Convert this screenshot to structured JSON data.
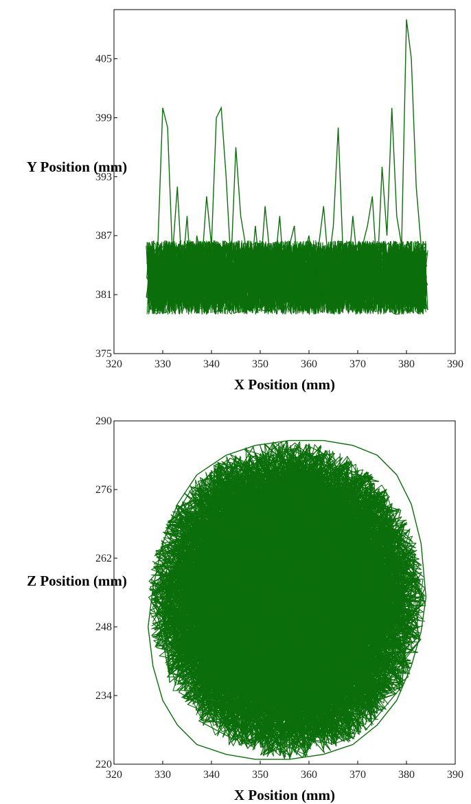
{
  "chart_data": [
    {
      "type": "line",
      "title": "",
      "xlabel": "X Position (mm)",
      "ylabel": "Y Position (mm)",
      "xlim": [
        320,
        390
      ],
      "ylim": [
        375,
        410
      ],
      "xticks": [
        320,
        330,
        340,
        350,
        360,
        370,
        380,
        390
      ],
      "yticks": [
        375,
        381,
        387,
        393,
        399,
        405
      ],
      "grid": false,
      "color": "#0b6e0b",
      "series": [
        {
          "x": [
            327,
            328,
            329,
            330,
            331,
            332,
            333,
            334,
            335,
            336,
            337,
            338,
            339,
            340,
            341,
            342,
            343,
            344,
            345,
            346,
            347,
            348,
            349,
            350,
            351,
            352,
            353,
            354,
            355,
            356,
            357,
            358,
            359,
            360,
            361,
            362,
            363,
            364,
            365,
            366,
            367,
            368,
            369,
            370,
            371,
            372,
            373,
            374,
            375,
            376,
            377,
            378,
            379,
            380,
            381,
            382,
            383,
            384
          ],
          "y": [
            384,
            382,
            386,
            400,
            398,
            385,
            392,
            383,
            389,
            381,
            387,
            384,
            391,
            386,
            399,
            400,
            393,
            384,
            396,
            389,
            386,
            382,
            388,
            383,
            390,
            385,
            384,
            389,
            382,
            386,
            388,
            381,
            385,
            387,
            383,
            386,
            390,
            384,
            388,
            398,
            385,
            383,
            389,
            384,
            386,
            388,
            391,
            383,
            394,
            387,
            400,
            389,
            386,
            409,
            405,
            392,
            386,
            383
          ]
        }
      ]
    },
    {
      "type": "line",
      "title": "",
      "xlabel": "X Position (mm)",
      "ylabel": "Z Position (mm)",
      "xlim": [
        320,
        390
      ],
      "ylim": [
        220,
        290
      ],
      "xticks": [
        320,
        330,
        340,
        350,
        360,
        370,
        380,
        390
      ],
      "yticks": [
        220,
        234,
        248,
        262,
        276,
        290
      ],
      "grid": false,
      "color": "#0b6e0b",
      "series": [
        {
          "x": [
            384,
            383,
            381,
            378,
            374,
            369,
            363,
            356,
            349,
            343,
            337,
            333,
            330,
            328,
            327,
            328,
            330,
            333,
            337,
            343,
            349,
            356,
            363,
            369,
            374,
            378,
            381,
            383,
            384
          ],
          "y": [
            254,
            265,
            273,
            279,
            283,
            285,
            286,
            286,
            285,
            283,
            279,
            273,
            265,
            256,
            248,
            240,
            233,
            228,
            224,
            222,
            221,
            221,
            222,
            224,
            228,
            233,
            240,
            247,
            254
          ]
        }
      ]
    }
  ]
}
